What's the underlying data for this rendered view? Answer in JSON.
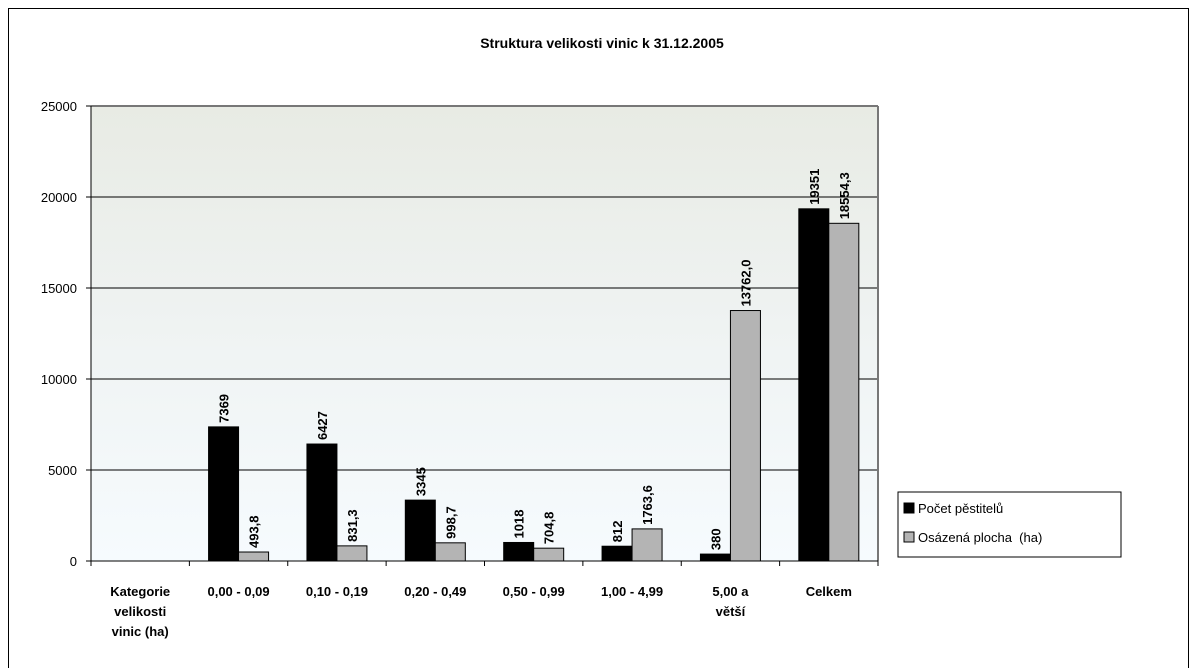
{
  "chart_data": {
    "type": "bar",
    "title": "Struktura velikosti vinic k 31.12.2005",
    "xlabel": "",
    "ylabel": "",
    "ylim": [
      0,
      25000
    ],
    "yticks": [
      "0",
      "5000",
      "10000",
      "15000",
      "20000",
      "25000"
    ],
    "grid": true,
    "legend_position": "right",
    "categories": [
      [
        "Kategorie",
        "velikosti",
        "vinic (ha)"
      ],
      [
        "0,00 - 0,09"
      ],
      [
        "0,10 - 0,19"
      ],
      [
        "0,20 - 0,49"
      ],
      [
        "0,50 - 0,99"
      ],
      [
        "1,00 - 4,99"
      ],
      [
        "5,00 a",
        "větší"
      ],
      [
        "Celkem"
      ]
    ],
    "series": [
      {
        "name": "Počet pěstitelů",
        "color": "#000000",
        "values": [
          null,
          7369,
          6427,
          3345,
          1018,
          812,
          380,
          19351
        ],
        "labels": [
          "",
          "7369",
          "6427",
          "3345",
          "1018",
          "812",
          "380",
          "19351"
        ]
      },
      {
        "name": "Osázená plocha  (ha)",
        "color": "#b4b4b4",
        "values": [
          null,
          493.8,
          831.3,
          998.7,
          704.8,
          1763.6,
          13762.0,
          18554.3
        ],
        "labels": [
          "",
          "493,8",
          "831,3",
          "998,7",
          "704,8",
          "1763,6",
          "13762,0",
          "18554,3"
        ]
      }
    ]
  }
}
